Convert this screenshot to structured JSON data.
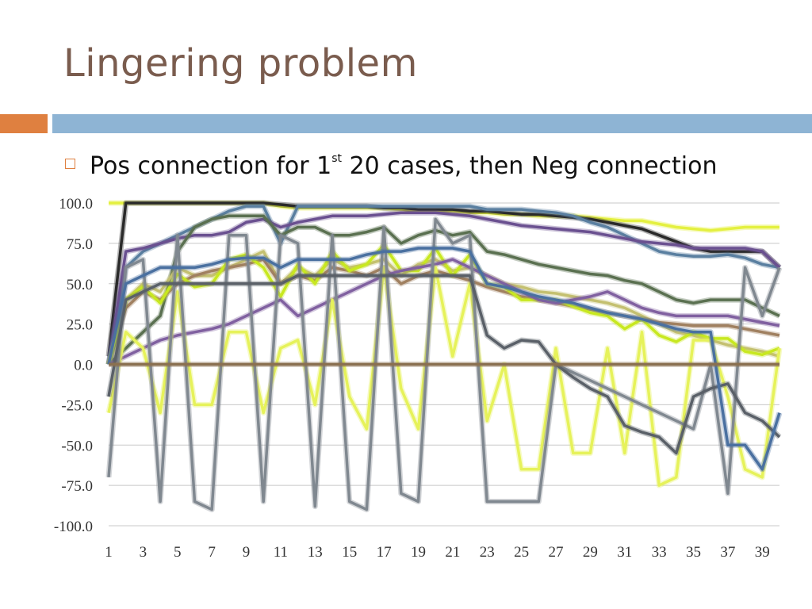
{
  "slide": {
    "title": "Lingering problem",
    "bullet_main": "Pos connection for 1",
    "bullet_sup": "st",
    "bullet_rest": " 20 cases, then Neg connection"
  },
  "colors": {
    "accent_orange": "#df8040",
    "accent_blue": "#8eb4d4",
    "title": "#7a5c4e"
  },
  "chart_data": {
    "type": "line",
    "title": "",
    "xlabel": "",
    "ylabel": "",
    "x": [
      1,
      2,
      3,
      4,
      5,
      6,
      7,
      8,
      9,
      10,
      11,
      12,
      13,
      14,
      15,
      16,
      17,
      18,
      19,
      20,
      21,
      22,
      23,
      24,
      25,
      26,
      27,
      28,
      29,
      30,
      31,
      32,
      33,
      34,
      35,
      36,
      37,
      38,
      39,
      40
    ],
    "x_tick_labels": [
      "1",
      "3",
      "5",
      "7",
      "9",
      "11",
      "13",
      "15",
      "17",
      "19",
      "21",
      "23",
      "25",
      "27",
      "29",
      "31",
      "33",
      "35",
      "37",
      "39"
    ],
    "y_tick_labels": [
      "100.0",
      "75.0",
      "50.0",
      "25.0",
      "0.0",
      "-25.0",
      "-50.0",
      "-75.0",
      "-100.0"
    ],
    "ylim": [
      -100,
      100
    ],
    "grid": true,
    "legend": "none",
    "series": [
      {
        "color": "#e4f040",
        "values": [
          100,
          100,
          100,
          100,
          100,
          100,
          100,
          100,
          100,
          100,
          98,
          97,
          97,
          97,
          97,
          97,
          97,
          96,
          95,
          95,
          95,
          94,
          94,
          93,
          93,
          92,
          92,
          92,
          91,
          90,
          89,
          89,
          87,
          85,
          84,
          83,
          84,
          85,
          85,
          85
        ]
      },
      {
        "color": "#2a2a2a",
        "values": [
          5,
          100,
          100,
          100,
          100,
          100,
          100,
          100,
          100,
          100,
          99,
          98,
          98,
          98,
          98,
          98,
          97,
          97,
          96,
          96,
          96,
          95,
          95,
          94,
          93,
          93,
          92,
          91,
          90,
          88,
          86,
          84,
          80,
          76,
          72,
          70,
          70,
          70,
          70,
          60
        ]
      },
      {
        "color": "#5a7fa0",
        "values": [
          0,
          60,
          70,
          75,
          80,
          85,
          90,
          95,
          98,
          98,
          75,
          98,
          98,
          98,
          98,
          98,
          98,
          98,
          98,
          98,
          98,
          98,
          96,
          96,
          96,
          95,
          94,
          92,
          88,
          85,
          80,
          75,
          70,
          68,
          67,
          67,
          68,
          66,
          62,
          60
        ]
      },
      {
        "color": "#6a5090",
        "values": [
          0,
          70,
          72,
          75,
          78,
          80,
          80,
          82,
          88,
          90,
          85,
          88,
          90,
          92,
          92,
          92,
          93,
          94,
          94,
          94,
          93,
          92,
          90,
          88,
          86,
          85,
          84,
          83,
          82,
          80,
          78,
          76,
          75,
          74,
          72,
          72,
          72,
          72,
          70,
          60
        ]
      },
      {
        "color": "#5a7050",
        "values": [
          0,
          10,
          20,
          30,
          70,
          85,
          90,
          92,
          92,
          92,
          80,
          85,
          85,
          80,
          80,
          82,
          85,
          75,
          80,
          83,
          80,
          82,
          70,
          68,
          65,
          62,
          60,
          58,
          56,
          55,
          52,
          50,
          45,
          40,
          38,
          40,
          40,
          40,
          35,
          30
        ]
      },
      {
        "color": "#c4c070",
        "values": [
          0,
          40,
          50,
          45,
          60,
          55,
          55,
          60,
          65,
          70,
          50,
          60,
          55,
          65,
          60,
          62,
          65,
          55,
          62,
          65,
          58,
          60,
          55,
          50,
          48,
          45,
          44,
          42,
          40,
          38,
          35,
          30,
          25,
          20,
          18,
          15,
          12,
          10,
          8,
          5
        ]
      },
      {
        "color": "#a08060",
        "values": [
          0,
          35,
          45,
          40,
          50,
          55,
          58,
          60,
          62,
          65,
          50,
          55,
          52,
          60,
          58,
          55,
          60,
          50,
          55,
          58,
          55,
          52,
          48,
          45,
          42,
          40,
          38,
          36,
          34,
          32,
          30,
          28,
          26,
          25,
          24,
          24,
          24,
          22,
          20,
          18
        ]
      },
      {
        "color": "#c8e820",
        "values": [
          0,
          40,
          48,
          38,
          56,
          48,
          50,
          65,
          68,
          60,
          42,
          62,
          50,
          70,
          58,
          62,
          74,
          58,
          58,
          72,
          55,
          68,
          50,
          48,
          40,
          40,
          40,
          36,
          32,
          30,
          22,
          28,
          18,
          14,
          20,
          16,
          16,
          8,
          6,
          10
        ]
      },
      {
        "color": "#8060a0",
        "values": [
          0,
          5,
          10,
          15,
          18,
          20,
          22,
          25,
          30,
          35,
          40,
          30,
          35,
          40,
          45,
          50,
          55,
          58,
          60,
          62,
          65,
          60,
          55,
          50,
          45,
          40,
          38,
          40,
          42,
          45,
          40,
          35,
          32,
          30,
          30,
          30,
          30,
          28,
          26,
          24
        ]
      },
      {
        "color": "#e6f25a",
        "values": [
          -30,
          20,
          10,
          -30,
          45,
          -25,
          -25,
          20,
          20,
          -30,
          10,
          15,
          -25,
          40,
          -20,
          -40,
          60,
          -15,
          -40,
          60,
          5,
          50,
          -35,
          0,
          -65,
          -65,
          10,
          -55,
          -55,
          10,
          -55,
          20,
          -75,
          -70,
          15,
          15,
          -20,
          -65,
          -70,
          10
        ]
      },
      {
        "color": "#808890",
        "values": [
          -70,
          60,
          65,
          -85,
          80,
          -85,
          -90,
          80,
          80,
          -85,
          80,
          75,
          -88,
          80,
          -85,
          -90,
          85,
          -80,
          -85,
          90,
          75,
          80,
          -85,
          -85,
          -85,
          -85,
          0,
          -5,
          -10,
          -15,
          -20,
          -25,
          -30,
          -35,
          -40,
          0,
          -80,
          60,
          30,
          60
        ]
      },
      {
        "color": "#5a6068",
        "values": [
          -20,
          40,
          45,
          50,
          50,
          50,
          50,
          50,
          50,
          50,
          50,
          55,
          55,
          55,
          55,
          55,
          55,
          55,
          55,
          55,
          55,
          55,
          18,
          10,
          15,
          14,
          0,
          -8,
          -15,
          -20,
          -38,
          -42,
          -45,
          -55,
          -20,
          -15,
          -12,
          -30,
          -35,
          -45
        ]
      },
      {
        "color": "#4a70a0",
        "values": [
          0,
          50,
          55,
          60,
          60,
          60,
          62,
          65,
          66,
          66,
          60,
          65,
          65,
          65,
          65,
          68,
          70,
          70,
          72,
          72,
          72,
          70,
          50,
          48,
          45,
          42,
          40,
          38,
          35,
          32,
          30,
          28,
          25,
          22,
          20,
          20,
          -50,
          -50,
          -65,
          -30
        ]
      },
      {
        "color": "#8a7050",
        "values": [
          0,
          0,
          0,
          0,
          0,
          0,
          0,
          0,
          0,
          0,
          0,
          0,
          0,
          0,
          0,
          0,
          0,
          0,
          0,
          0,
          0,
          0,
          0,
          0,
          0,
          0,
          0,
          0,
          0,
          0,
          0,
          0,
          0,
          0,
          0,
          0,
          0,
          0,
          0,
          0
        ]
      }
    ]
  }
}
